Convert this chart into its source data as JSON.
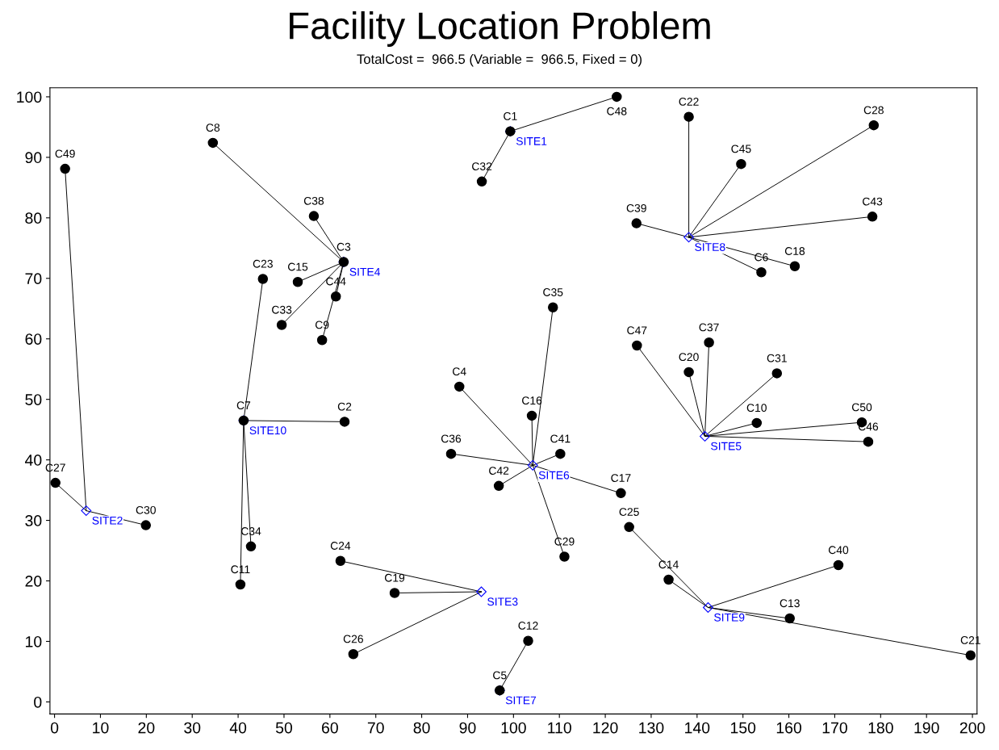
{
  "chart_data": {
    "type": "scatter",
    "title": "Facility Location Problem",
    "subtitle": "TotalCost =  966.5 (Variable =  966.5, Fixed = 0)",
    "xlim": [
      -1,
      201
    ],
    "ylim": [
      -2,
      101.5
    ],
    "xticks": [
      0,
      10,
      20,
      30,
      40,
      50,
      60,
      70,
      80,
      90,
      100,
      110,
      120,
      130,
      140,
      150,
      160,
      170,
      180,
      190,
      200
    ],
    "yticks": [
      0,
      10,
      20,
      30,
      40,
      50,
      60,
      70,
      80,
      90,
      100
    ],
    "grid": false,
    "series": [
      {
        "type": "line",
        "color": "#000000",
        "x": [
          99.3,
          122.5
        ],
        "values": [
          94.3,
          100
        ]
      },
      {
        "type": "line",
        "color": "#000000",
        "x": [
          99.3,
          93.1
        ],
        "values": [
          94.3,
          86.0
        ]
      },
      {
        "type": "line",
        "color": "#000000",
        "x": [
          6.9,
          2.3
        ],
        "values": [
          31.6,
          88.1
        ]
      },
      {
        "type": "line",
        "color": "#000000",
        "x": [
          6.9,
          0.2
        ],
        "values": [
          31.6,
          36.2
        ]
      },
      {
        "type": "line",
        "color": "#000000",
        "x": [
          6.9,
          19.9
        ],
        "values": [
          31.6,
          29.2
        ]
      },
      {
        "type": "line",
        "color": "#000000",
        "x": [
          93.0,
          62.3
        ],
        "values": [
          18.2,
          23.3
        ]
      },
      {
        "type": "line",
        "color": "#000000",
        "x": [
          93.0,
          74.1
        ],
        "values": [
          18.2,
          18.0
        ]
      },
      {
        "type": "line",
        "color": "#000000",
        "x": [
          93.0,
          65.1
        ],
        "values": [
          18.2,
          7.9
        ]
      },
      {
        "type": "line",
        "color": "#000000",
        "x": [
          63.0,
          34.5
        ],
        "values": [
          72.7,
          92.4
        ]
      },
      {
        "type": "line",
        "color": "#000000",
        "x": [
          63.0,
          56.5
        ],
        "values": [
          72.7,
          80.3
        ]
      },
      {
        "type": "line",
        "color": "#000000",
        "x": [
          63.0,
          53.0
        ],
        "values": [
          72.7,
          69.4
        ]
      },
      {
        "type": "line",
        "color": "#000000",
        "x": [
          63.0,
          61.3
        ],
        "values": [
          72.7,
          67.0
        ]
      },
      {
        "type": "line",
        "color": "#000000",
        "x": [
          63.0,
          49.5
        ],
        "values": [
          72.7,
          62.3
        ]
      },
      {
        "type": "line",
        "color": "#000000",
        "x": [
          63.0,
          58.3
        ],
        "values": [
          72.7,
          59.8
        ]
      },
      {
        "type": "line",
        "color": "#000000",
        "x": [
          141.7,
          126.9
        ],
        "values": [
          43.9,
          58.9
        ]
      },
      {
        "type": "line",
        "color": "#000000",
        "x": [
          141.7,
          142.6
        ],
        "values": [
          43.9,
          59.4
        ]
      },
      {
        "type": "line",
        "color": "#000000",
        "x": [
          141.7,
          138.2
        ],
        "values": [
          43.9,
          54.5
        ]
      },
      {
        "type": "line",
        "color": "#000000",
        "x": [
          141.7,
          157.4
        ],
        "values": [
          43.9,
          54.3
        ]
      },
      {
        "type": "line",
        "color": "#000000",
        "x": [
          141.7,
          153.0
        ],
        "values": [
          43.9,
          46.1
        ]
      },
      {
        "type": "line",
        "color": "#000000",
        "x": [
          141.7,
          175.9
        ],
        "values": [
          43.9,
          46.2
        ]
      },
      {
        "type": "line",
        "color": "#000000",
        "x": [
          141.7,
          177.3
        ],
        "values": [
          43.9,
          43.0
        ]
      },
      {
        "type": "line",
        "color": "#000000",
        "x": [
          104.2,
          88.2
        ],
        "values": [
          39.1,
          52.1
        ]
      },
      {
        "type": "line",
        "color": "#000000",
        "x": [
          104.2,
          104.0
        ],
        "values": [
          39.1,
          47.3
        ]
      },
      {
        "type": "line",
        "color": "#000000",
        "x": [
          104.2,
          108.6
        ],
        "values": [
          39.1,
          65.2
        ]
      },
      {
        "type": "line",
        "color": "#000000",
        "x": [
          104.2,
          110.2
        ],
        "values": [
          39.1,
          41.0
        ]
      },
      {
        "type": "line",
        "color": "#000000",
        "x": [
          104.2,
          86.4
        ],
        "values": [
          39.1,
          41.0
        ]
      },
      {
        "type": "line",
        "color": "#000000",
        "x": [
          104.2,
          96.8
        ],
        "values": [
          39.1,
          35.7
        ]
      },
      {
        "type": "line",
        "color": "#000000",
        "x": [
          104.2,
          123.4
        ],
        "values": [
          39.1,
          34.5
        ]
      },
      {
        "type": "line",
        "color": "#000000",
        "x": [
          104.2,
          111.1
        ],
        "values": [
          39.1,
          24.0
        ]
      },
      {
        "type": "line",
        "color": "#000000",
        "x": [
          97.0,
          103.2
        ],
        "values": [
          1.9,
          10.1
        ]
      },
      {
        "type": "line",
        "color": "#000000",
        "x": [
          138.2,
          138.2
        ],
        "values": [
          76.8,
          96.7
        ]
      },
      {
        "type": "line",
        "color": "#000000",
        "x": [
          138.2,
          178.5
        ],
        "values": [
          76.8,
          95.3
        ]
      },
      {
        "type": "line",
        "color": "#000000",
        "x": [
          138.2,
          149.6
        ],
        "values": [
          76.8,
          88.9
        ]
      },
      {
        "type": "line",
        "color": "#000000",
        "x": [
          138.2,
          178.2
        ],
        "values": [
          76.8,
          80.2
        ]
      },
      {
        "type": "line",
        "color": "#000000",
        "x": [
          138.2,
          126.8
        ],
        "values": [
          76.8,
          79.1
        ]
      },
      {
        "type": "line",
        "color": "#000000",
        "x": [
          138.2,
          161.3
        ],
        "values": [
          76.8,
          72.0
        ]
      },
      {
        "type": "line",
        "color": "#000000",
        "x": [
          138.2,
          154.0
        ],
        "values": [
          76.8,
          71.0
        ]
      },
      {
        "type": "line",
        "color": "#000000",
        "x": [
          142.4,
          125.2
        ],
        "values": [
          15.6,
          28.9
        ]
      },
      {
        "type": "line",
        "color": "#000000",
        "x": [
          142.4,
          133.8
        ],
        "values": [
          15.6,
          20.2
        ]
      },
      {
        "type": "line",
        "color": "#000000",
        "x": [
          142.4,
          170.8
        ],
        "values": [
          15.6,
          22.6
        ]
      },
      {
        "type": "line",
        "color": "#000000",
        "x": [
          142.4,
          160.2
        ],
        "values": [
          15.6,
          13.8
        ]
      },
      {
        "type": "line",
        "color": "#000000",
        "x": [
          142.4,
          199.6
        ],
        "values": [
          15.6,
          7.7
        ]
      },
      {
        "type": "line",
        "color": "#000000",
        "x": [
          41.2,
          45.4
        ],
        "values": [
          46.5,
          69.9
        ]
      },
      {
        "type": "line",
        "color": "#000000",
        "x": [
          41.2,
          63.2
        ],
        "values": [
          46.5,
          46.3
        ]
      },
      {
        "type": "line",
        "color": "#000000",
        "x": [
          41.2,
          42.8
        ],
        "values": [
          46.5,
          25.7
        ]
      },
      {
        "type": "line",
        "color": "#000000",
        "x": [
          41.2,
          40.5
        ],
        "values": [
          46.5,
          19.4
        ]
      },
      {
        "color": "#0000ff",
        "marker": "diamond",
        "x": [
          99.3,
          6.9,
          93.0,
          63.0,
          141.7,
          104.2,
          97.0,
          138.2,
          142.4,
          41.2
        ],
        "values": [
          94.3,
          31.6,
          18.2,
          72.7,
          43.9,
          39.1,
          1.9,
          76.8,
          15.6,
          46.5
        ],
        "value_labels": [
          "SITE1",
          "SITE2",
          "SITE3",
          "SITE4",
          "SITE5",
          "SITE6",
          "SITE7",
          "SITE8",
          "SITE9",
          "SITE10"
        ]
      },
      {
        "color": "#000000",
        "marker": "circle",
        "x": [
          99.3,
          63.2,
          63.0,
          88.2,
          97.0,
          154.0,
          41.2,
          34.5,
          58.3,
          153.0,
          40.5,
          103.2,
          160.2,
          133.8,
          53.0,
          104.0,
          123.4,
          161.3,
          74.1,
          138.2,
          199.6,
          138.2,
          45.4,
          62.3,
          125.2,
          65.1,
          0.2,
          178.5,
          111.1,
          19.9,
          157.4,
          93.1,
          49.5,
          42.8,
          108.6,
          86.4,
          142.6,
          56.5,
          126.8,
          170.8,
          110.2,
          96.8,
          178.2,
          61.3,
          149.6,
          177.3,
          126.9,
          122.5,
          2.3,
          175.9
        ],
        "values": [
          94.3,
          46.3,
          72.7,
          52.1,
          1.9,
          71.0,
          46.5,
          92.4,
          59.8,
          46.1,
          19.4,
          10.1,
          13.8,
          20.2,
          69.4,
          47.3,
          34.5,
          72.0,
          18.0,
          54.5,
          7.7,
          96.7,
          69.9,
          23.3,
          28.9,
          7.9,
          36.2,
          95.3,
          24.0,
          29.2,
          54.3,
          86.0,
          62.3,
          25.7,
          65.2,
          41.0,
          59.4,
          80.3,
          79.1,
          22.6,
          41.0,
          35.7,
          80.2,
          67.0,
          88.9,
          43.0,
          58.9,
          100,
          88.1,
          46.2
        ],
        "value_labels": [
          "C1",
          "C2",
          "C3",
          "C4",
          "C5",
          "C6",
          "C7",
          "C8",
          "C9",
          "C10",
          "C11",
          "C12",
          "C13",
          "C14",
          "C15",
          "C16",
          "C17",
          "C18",
          "C19",
          "C20",
          "C21",
          "C22",
          "C23",
          "C24",
          "C25",
          "C26",
          "C27",
          "C28",
          "C29",
          "C30",
          "C31",
          "C32",
          "C33",
          "C34",
          "C35",
          "C36",
          "C37",
          "C38",
          "C39",
          "C40",
          "C41",
          "C42",
          "C43",
          "C44",
          "C45",
          "C46",
          "C47",
          "C48",
          "C49",
          "C50"
        ]
      }
    ]
  }
}
